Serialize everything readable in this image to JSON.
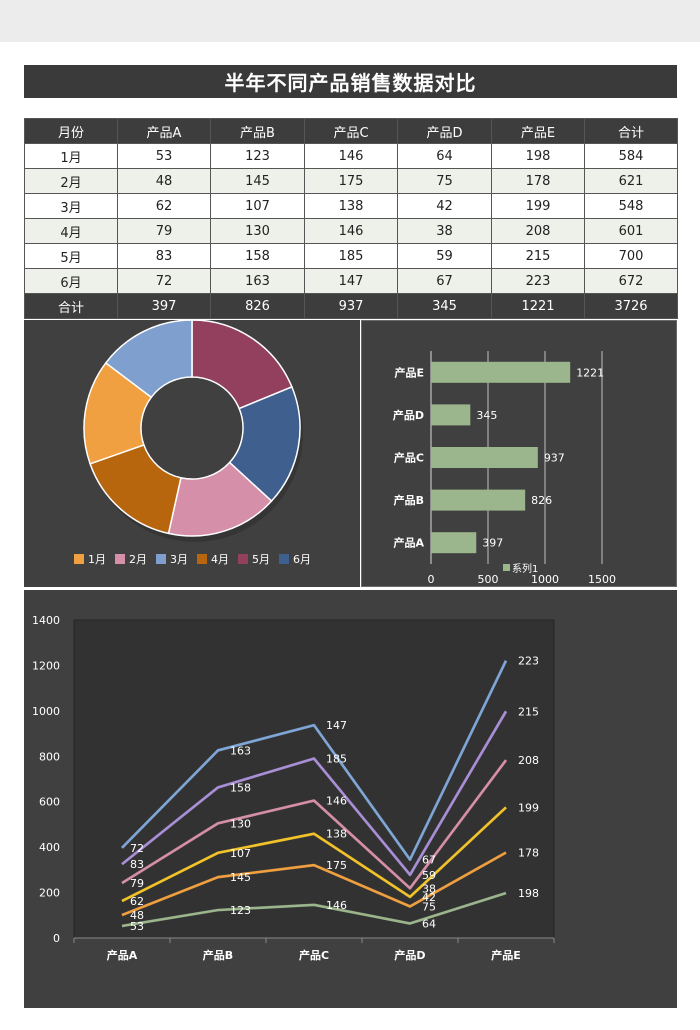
{
  "title": "半年不同产品销售数据对比",
  "table": {
    "headers": [
      "月份",
      "产品A",
      "产品B",
      "产品C",
      "产品D",
      "产品E",
      "合计"
    ],
    "rows": [
      [
        "1月",
        "53",
        "123",
        "146",
        "64",
        "198",
        "584"
      ],
      [
        "2月",
        "48",
        "145",
        "175",
        "75",
        "178",
        "621"
      ],
      [
        "3月",
        "62",
        "107",
        "138",
        "42",
        "199",
        "548"
      ],
      [
        "4月",
        "79",
        "130",
        "146",
        "38",
        "208",
        "601"
      ],
      [
        "5月",
        "83",
        "158",
        "185",
        "59",
        "215",
        "700"
      ],
      [
        "6月",
        "72",
        "163",
        "147",
        "67",
        "223",
        "672"
      ]
    ],
    "total": [
      "合计",
      "397",
      "826",
      "937",
      "345",
      "1221",
      "3726"
    ]
  },
  "chart_data": [
    {
      "type": "pie",
      "variant": "donut",
      "categories": [
        "1月",
        "2月",
        "3月",
        "4月",
        "5月",
        "6月"
      ],
      "values": [
        584,
        621,
        548,
        601,
        700,
        672
      ],
      "colors": [
        "#f0a040",
        "#d68fa8",
        "#7f9fcf",
        "#b8660e",
        "#93405e",
        "#3f5f8f"
      ],
      "legend_position": "bottom"
    },
    {
      "type": "bar",
      "orientation": "horizontal",
      "categories": [
        "产品A",
        "产品B",
        "产品C",
        "产品D",
        "产品E"
      ],
      "values": [
        397,
        826,
        937,
        345,
        1221
      ],
      "xlim": [
        0,
        1500
      ],
      "xticks": [
        0,
        500,
        1000,
        1500
      ],
      "legend": "系列1",
      "color": "#9bb58c",
      "grid": true
    },
    {
      "type": "line",
      "categories": [
        "产品A",
        "产品B",
        "产品C",
        "产品D",
        "产品E"
      ],
      "stacked": true,
      "ylim": [
        0,
        1400
      ],
      "yticks": [
        0,
        200,
        400,
        600,
        800,
        1000,
        1200,
        1400
      ],
      "series": [
        {
          "values": [
            53,
            123,
            146,
            64,
            198
          ],
          "color": "#9bb58c"
        },
        {
          "values": [
            48,
            145,
            175,
            75,
            178
          ],
          "color": "#f0a040"
        },
        {
          "values": [
            62,
            107,
            138,
            42,
            199
          ],
          "color": "#f2c32a"
        },
        {
          "values": [
            79,
            130,
            146,
            38,
            208
          ],
          "color": "#d68fa8"
        },
        {
          "values": [
            83,
            158,
            185,
            59,
            215
          ],
          "color": "#a98fd6"
        },
        {
          "values": [
            72,
            163,
            147,
            67,
            223
          ],
          "color": "#7fa6d6"
        }
      ]
    }
  ]
}
